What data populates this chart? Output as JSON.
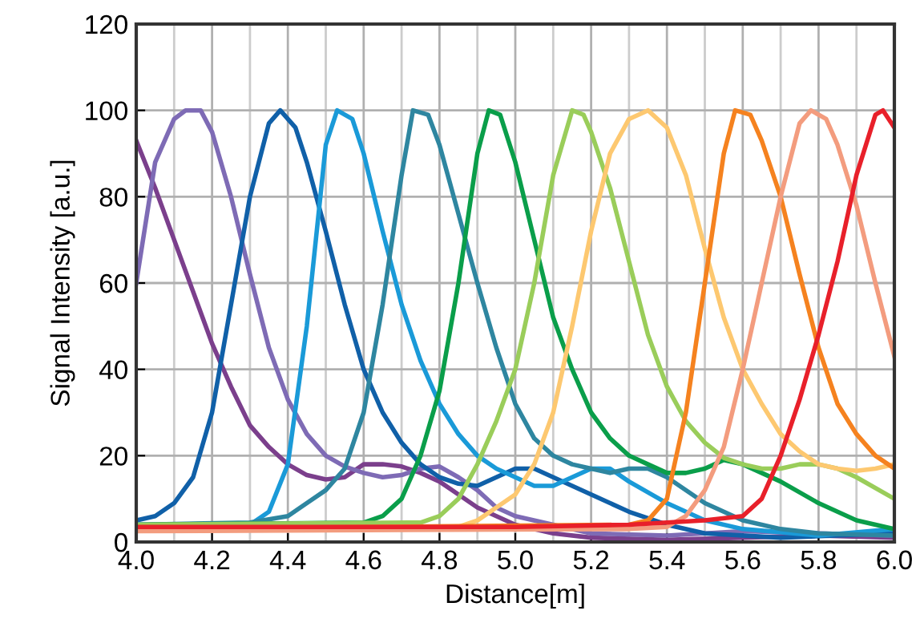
{
  "chart_data": {
    "type": "line",
    "xlabel": "Distance[m]",
    "ylabel": "Signal Intensity [a.u.]",
    "xlim": [
      4.0,
      6.0
    ],
    "ylim": [
      0,
      120
    ],
    "xticks": [
      {
        "value": 4.0,
        "label": "4.0"
      },
      {
        "value": 4.2,
        "label": "4.2"
      },
      {
        "value": 4.4,
        "label": "4.4"
      },
      {
        "value": 4.6,
        "label": "4.6"
      },
      {
        "value": 4.8,
        "label": "4.8"
      },
      {
        "value": 5.0,
        "label": "5.0"
      },
      {
        "value": 5.2,
        "label": "5.2"
      },
      {
        "value": 5.4,
        "label": "5.4"
      },
      {
        "value": 5.6,
        "label": "5.6"
      },
      {
        "value": 5.8,
        "label": "5.8"
      },
      {
        "value": 6.0,
        "label": "6.0"
      }
    ],
    "yticks": [
      0,
      20,
      40,
      60,
      80,
      100,
      120
    ],
    "grid": true,
    "legend": false,
    "marker": "none",
    "line_style": "solid",
    "series": [
      {
        "color": "#7b3f8c",
        "x": [
          4.0,
          4.05,
          4.1,
          4.15,
          4.2,
          4.25,
          4.3,
          4.35,
          4.4,
          4.45,
          4.5,
          4.55,
          4.6,
          4.65,
          4.7,
          4.75,
          4.8,
          4.85,
          4.9,
          4.95,
          5.0,
          5.1,
          5.2,
          5.4,
          5.6,
          5.8,
          6.0
        ],
        "values": [
          93,
          82,
          70,
          58,
          46,
          36,
          27,
          22,
          18,
          15.5,
          14.5,
          15,
          18,
          18,
          17.5,
          16,
          14,
          11,
          8,
          6,
          4,
          2,
          1,
          0.5,
          1,
          1.5,
          1
        ]
      },
      {
        "color": "#7e6bb5",
        "x": [
          4.0,
          4.05,
          4.1,
          4.13,
          4.17,
          4.2,
          4.25,
          4.3,
          4.35,
          4.4,
          4.45,
          4.5,
          4.55,
          4.6,
          4.65,
          4.7,
          4.75,
          4.8,
          4.85,
          4.9,
          4.95,
          5.0,
          5.1,
          5.2,
          5.4,
          5.6,
          5.8,
          6.0
        ],
        "values": [
          60,
          88,
          98,
          100,
          100,
          95,
          80,
          62,
          45,
          33,
          25,
          20,
          17.5,
          16,
          15,
          15.5,
          17,
          17.5,
          15,
          12,
          8,
          6,
          4,
          2,
          1.5,
          2.5,
          2,
          1.5
        ]
      },
      {
        "color": "#1060a8",
        "x": [
          4.0,
          4.05,
          4.1,
          4.15,
          4.2,
          4.25,
          4.3,
          4.35,
          4.38,
          4.42,
          4.45,
          4.5,
          4.55,
          4.6,
          4.65,
          4.7,
          4.75,
          4.8,
          4.85,
          4.9,
          4.95,
          5.0,
          5.05,
          5.1,
          5.2,
          5.3,
          5.4,
          5.5,
          5.7,
          6.0
        ],
        "values": [
          5,
          6,
          9,
          15,
          30,
          55,
          80,
          97,
          100,
          96,
          88,
          72,
          55,
          40,
          30,
          23,
          18,
          15,
          13.5,
          13,
          15,
          17,
          17,
          15,
          11,
          7,
          4,
          2,
          1,
          2
        ]
      },
      {
        "color": "#1a9ad8",
        "x": [
          4.0,
          4.3,
          4.35,
          4.4,
          4.45,
          4.5,
          4.53,
          4.57,
          4.6,
          4.65,
          4.7,
          4.75,
          4.8,
          4.85,
          4.9,
          4.95,
          5.0,
          5.05,
          5.1,
          5.15,
          5.2,
          5.25,
          5.3,
          5.4,
          5.5,
          5.6,
          5.8,
          6.0
        ],
        "values": [
          4,
          4,
          7,
          18,
          50,
          92,
          100,
          98,
          90,
          72,
          55,
          42,
          32,
          25,
          20,
          17,
          15,
          13,
          13,
          15,
          17,
          17,
          14,
          9,
          5,
          3,
          1.5,
          3
        ]
      },
      {
        "color": "#2e86a0",
        "x": [
          4.0,
          4.3,
          4.4,
          4.45,
          4.5,
          4.55,
          4.6,
          4.65,
          4.7,
          4.73,
          4.77,
          4.8,
          4.85,
          4.9,
          4.95,
          5.0,
          5.05,
          5.1,
          5.15,
          5.2,
          5.25,
          5.3,
          5.35,
          5.4,
          5.5,
          5.6,
          5.7,
          5.8,
          6.0
        ],
        "values": [
          4,
          4.5,
          6,
          9,
          12,
          17,
          30,
          55,
          85,
          100,
          99,
          92,
          76,
          60,
          45,
          32,
          24,
          20,
          18,
          17,
          16,
          17,
          17,
          15,
          9,
          5,
          3,
          2,
          1.5
        ]
      },
      {
        "color": "#0a9e4a",
        "x": [
          4.0,
          4.6,
          4.65,
          4.7,
          4.75,
          4.8,
          4.85,
          4.9,
          4.93,
          4.96,
          5.0,
          5.05,
          5.1,
          5.15,
          5.2,
          5.25,
          5.3,
          5.35,
          5.4,
          5.45,
          5.5,
          5.55,
          5.6,
          5.7,
          5.8,
          5.9,
          6.0
        ],
        "values": [
          4,
          4.5,
          6,
          10,
          20,
          35,
          60,
          90,
          100,
          99,
          88,
          70,
          52,
          40,
          30,
          24,
          20,
          18,
          16,
          16,
          17,
          19,
          18,
          14,
          9,
          5,
          3
        ]
      },
      {
        "color": "#9acd5a",
        "x": [
          4.0,
          4.75,
          4.8,
          4.85,
          4.9,
          4.95,
          5.0,
          5.05,
          5.1,
          5.15,
          5.18,
          5.2,
          5.25,
          5.3,
          5.35,
          5.4,
          5.45,
          5.5,
          5.55,
          5.6,
          5.65,
          5.7,
          5.75,
          5.8,
          5.85,
          5.9,
          6.0
        ],
        "values": [
          4,
          4.5,
          6,
          10,
          18,
          28,
          40,
          60,
          85,
          100,
          99,
          95,
          82,
          65,
          48,
          36,
          28,
          23,
          19.5,
          18,
          17,
          17,
          18,
          18,
          17,
          15,
          10
        ]
      },
      {
        "color": "#fdc870",
        "x": [
          4.0,
          4.85,
          4.9,
          4.95,
          5.0,
          5.05,
          5.1,
          5.15,
          5.2,
          5.25,
          5.3,
          5.35,
          5.4,
          5.45,
          5.5,
          5.55,
          5.6,
          5.65,
          5.7,
          5.75,
          5.8,
          5.85,
          5.9,
          5.95,
          6.0
        ],
        "values": [
          3,
          3.5,
          5,
          8,
          11,
          18,
          30,
          50,
          72,
          90,
          98,
          100,
          96,
          85,
          68,
          52,
          40,
          32,
          25,
          21,
          18,
          17,
          16.5,
          17,
          18
        ]
      },
      {
        "color": "#f5821f",
        "x": [
          4.0,
          5.3,
          5.35,
          5.4,
          5.45,
          5.5,
          5.55,
          5.58,
          5.62,
          5.65,
          5.7,
          5.75,
          5.8,
          5.85,
          5.9,
          5.95,
          6.0
        ],
        "values": [
          3,
          4,
          5,
          10,
          30,
          60,
          90,
          100,
          99,
          93,
          80,
          62,
          45,
          32,
          25,
          20,
          17
        ]
      },
      {
        "color": "#f39c7e",
        "x": [
          4.0,
          5.3,
          5.4,
          5.45,
          5.5,
          5.55,
          5.6,
          5.65,
          5.7,
          5.75,
          5.78,
          5.82,
          5.85,
          5.9,
          5.95,
          6.0
        ],
        "values": [
          2.5,
          3,
          3.5,
          6,
          12,
          22,
          40,
          60,
          80,
          97,
          100,
          98,
          92,
          78,
          60,
          43
        ]
      },
      {
        "color": "#e8202a",
        "x": [
          4.0,
          5.0,
          5.3,
          5.5,
          5.6,
          5.65,
          5.7,
          5.75,
          5.8,
          5.85,
          5.9,
          5.95,
          5.97,
          6.0
        ],
        "values": [
          3.5,
          3.5,
          4,
          5,
          6,
          10,
          20,
          33,
          48,
          65,
          85,
          99,
          100,
          96
        ]
      }
    ]
  }
}
